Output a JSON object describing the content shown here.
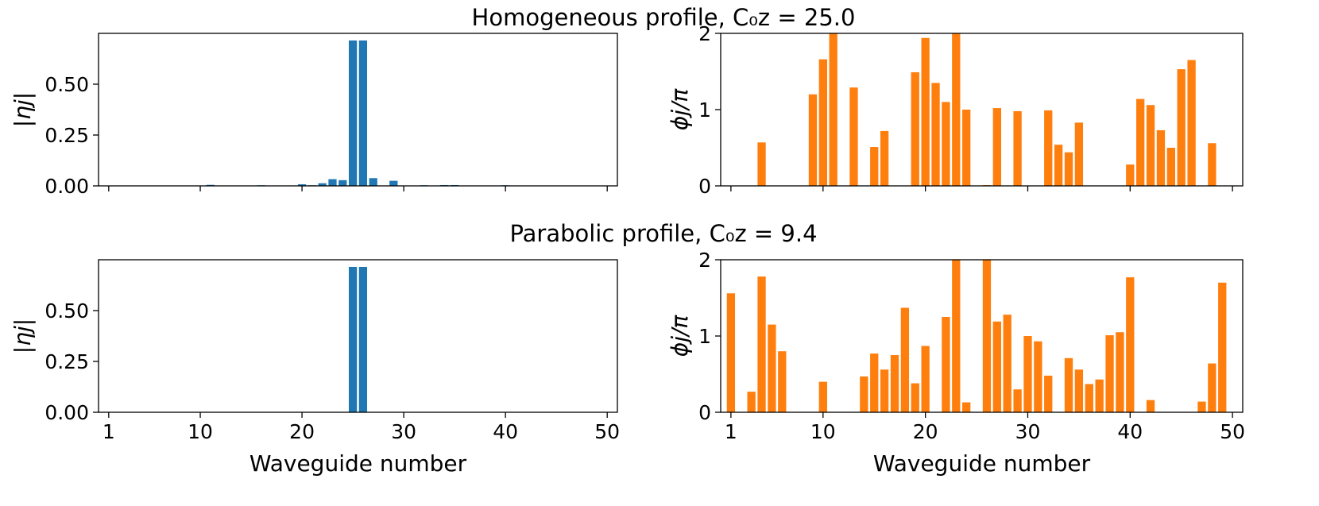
{
  "chart_data": [
    {
      "id": "homog-amp",
      "type": "bar",
      "panel_title": "Homogeneous profile, C₀z = 25.0",
      "ylabel": "|ηj|",
      "xlabel": "",
      "xlim": [
        0,
        51
      ],
      "ylim": [
        0,
        0.75
      ],
      "xticks": [
        1,
        10,
        20,
        30,
        40,
        50
      ],
      "yticks": [
        0.0,
        0.25,
        0.5
      ],
      "ytick_labels": [
        "0.00",
        "0.25",
        "0.50"
      ],
      "show_xtick_labels": false,
      "color": "#1f77b4",
      "x": [
        1,
        2,
        3,
        4,
        5,
        6,
        7,
        8,
        9,
        10,
        11,
        12,
        13,
        14,
        15,
        16,
        17,
        18,
        19,
        20,
        21,
        22,
        23,
        24,
        25,
        26,
        27,
        28,
        29,
        30,
        31,
        32,
        33,
        34,
        35,
        36,
        37,
        38,
        39,
        40,
        41,
        42,
        43,
        44,
        45,
        46,
        47,
        48,
        49,
        50
      ],
      "values": [
        0,
        0,
        0,
        0,
        0,
        0,
        0,
        0,
        0.002,
        0.001,
        0.005,
        0.001,
        0.001,
        0.001,
        0.001,
        0.003,
        0.001,
        0.001,
        0.002,
        0.008,
        0.003,
        0.013,
        0.033,
        0.028,
        0.715,
        0.715,
        0.038,
        0.002,
        0.025,
        0.002,
        0.001,
        0.003,
        0.002,
        0.004,
        0.004,
        0.001,
        0.001,
        0.001,
        0.001,
        0.003,
        0.001,
        0.001,
        0,
        0,
        0,
        0,
        0,
        0,
        0,
        0
      ]
    },
    {
      "id": "homog-phase",
      "type": "bar",
      "ylabel": "ϕj/π",
      "xlabel": "",
      "xlim": [
        0,
        51
      ],
      "ylim": [
        0,
        2
      ],
      "xticks": [
        1,
        10,
        20,
        30,
        40,
        50
      ],
      "yticks": [
        0,
        1,
        2
      ],
      "ytick_labels": [
        "0",
        "1",
        "2"
      ],
      "show_xtick_labels": false,
      "color": "#ff7f0e",
      "x": [
        1,
        2,
        3,
        4,
        5,
        6,
        7,
        8,
        9,
        10,
        11,
        12,
        13,
        14,
        15,
        16,
        17,
        18,
        19,
        20,
        21,
        22,
        23,
        24,
        25,
        26,
        27,
        28,
        29,
        30,
        31,
        32,
        33,
        34,
        35,
        36,
        37,
        38,
        39,
        40,
        41,
        42,
        43,
        44,
        45,
        46,
        47,
        48,
        49,
        50
      ],
      "values": [
        0,
        0,
        0,
        0.57,
        0,
        0,
        0,
        0,
        1.2,
        1.66,
        2.0,
        0,
        1.29,
        0,
        0.51,
        0.72,
        0,
        0,
        1.49,
        1.94,
        1.35,
        1.1,
        2.0,
        1.0,
        0,
        0.01,
        1.02,
        0,
        0.98,
        0,
        0,
        0.99,
        0.54,
        0.44,
        0.83,
        0,
        0,
        0,
        0,
        0.28,
        1.14,
        1.06,
        0.73,
        0.5,
        1.53,
        1.65,
        0,
        0.56,
        0,
        0
      ]
    },
    {
      "id": "parab-amp",
      "type": "bar",
      "panel_title": "Parabolic profile, C₀z = 9.4",
      "ylabel": "|ηj|",
      "xlabel": "Waveguide number",
      "xlim": [
        0,
        51
      ],
      "ylim": [
        0,
        0.75
      ],
      "xticks": [
        1,
        10,
        20,
        30,
        40,
        50
      ],
      "yticks": [
        0.0,
        0.25,
        0.5
      ],
      "ytick_labels": [
        "0.00",
        "0.25",
        "0.50"
      ],
      "show_xtick_labels": true,
      "color": "#1f77b4",
      "x": [
        1,
        2,
        3,
        4,
        5,
        6,
        7,
        8,
        9,
        10,
        11,
        12,
        13,
        14,
        15,
        16,
        17,
        18,
        19,
        20,
        21,
        22,
        23,
        24,
        25,
        26,
        27,
        28,
        29,
        30,
        31,
        32,
        33,
        34,
        35,
        36,
        37,
        38,
        39,
        40,
        41,
        42,
        43,
        44,
        45,
        46,
        47,
        48,
        49,
        50
      ],
      "values": [
        0,
        0,
        0,
        0,
        0,
        0,
        0,
        0,
        0,
        0,
        0,
        0,
        0,
        0,
        0,
        0,
        0,
        0,
        0,
        0,
        0,
        0,
        0,
        0,
        0.715,
        0.715,
        0,
        0,
        0,
        0,
        0,
        0,
        0,
        0,
        0.001,
        0,
        0,
        0,
        0,
        0,
        0,
        0,
        0,
        0,
        0,
        0,
        0,
        0,
        0,
        0
      ]
    },
    {
      "id": "parab-phase",
      "type": "bar",
      "ylabel": "ϕj/π",
      "xlabel": "Waveguide number",
      "xlim": [
        0,
        51
      ],
      "ylim": [
        0,
        2
      ],
      "xticks": [
        1,
        10,
        20,
        30,
        40,
        50
      ],
      "yticks": [
        0,
        1,
        2
      ],
      "ytick_labels": [
        "0",
        "1",
        "2"
      ],
      "show_xtick_labels": true,
      "color": "#ff7f0e",
      "x": [
        1,
        2,
        3,
        4,
        5,
        6,
        7,
        8,
        9,
        10,
        11,
        12,
        13,
        14,
        15,
        16,
        17,
        18,
        19,
        20,
        21,
        22,
        23,
        24,
        25,
        26,
        27,
        28,
        29,
        30,
        31,
        32,
        33,
        34,
        35,
        36,
        37,
        38,
        39,
        40,
        41,
        42,
        43,
        44,
        45,
        46,
        47,
        48,
        49,
        50
      ],
      "values": [
        1.56,
        0,
        0.27,
        1.78,
        1.15,
        0.8,
        0,
        0,
        0,
        0.4,
        0,
        0,
        0,
        0.47,
        0.77,
        0.56,
        0.75,
        1.37,
        0.38,
        0.87,
        0,
        1.25,
        2.0,
        0.13,
        0,
        2.0,
        1.19,
        1.28,
        0.3,
        1.0,
        0.93,
        0.48,
        0,
        0.71,
        0.56,
        0.37,
        0.43,
        1.01,
        1.05,
        1.77,
        0,
        0.16,
        0,
        0,
        0,
        0,
        0.14,
        0.64,
        1.7,
        0
      ]
    }
  ]
}
